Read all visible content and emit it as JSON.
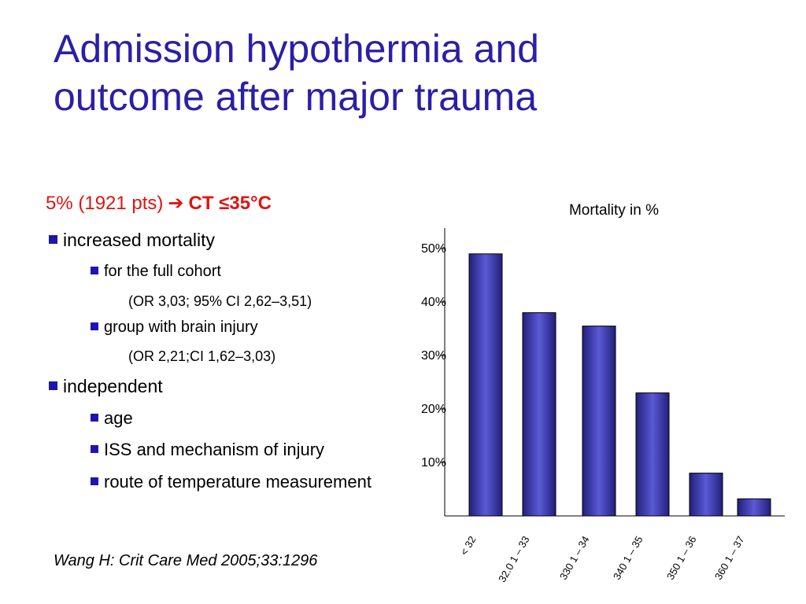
{
  "slide": {
    "title_lines": [
      "Admission hypothermia and",
      "outcome after major trauma"
    ],
    "lead": {
      "text": "5% (1921 pts)",
      "arrow": "➔",
      "highlight": "CT  ≤35°C"
    },
    "bullets": {
      "mortality": "increased mortality",
      "full_cohort": "for the full cohort",
      "full_cohort_detail": "(OR 3,03; 95% CI 2,62–3,51)",
      "brain_injury": "group with brain injury",
      "brain_injury_detail": "(OR 2,21;CI 1,62–3,03)",
      "independent": "independent",
      "age": "age",
      "iss": "ISS and mechanism of injury",
      "route": "route of temperature measurement"
    },
    "citation": "Wang H: Crit Care Med 2005;33:1296"
  },
  "colors": {
    "title": "#2b1ea8",
    "lead": "#e0140f",
    "bullet_square": "#1e14b0",
    "bar": "#22207a",
    "bar_highlight": "#5a5ad6"
  },
  "chart_data": {
    "type": "bar",
    "title": "Mortality in %",
    "categories": [
      "<  32",
      "32.0 1 – 33",
      "330 1 – 34",
      "340 1 – 35",
      "350 1 – 36",
      "360 1 – 37"
    ],
    "values": [
      49,
      38,
      35.5,
      23,
      8,
      3.2
    ],
    "yticks": [
      10,
      20,
      30,
      40,
      50
    ],
    "ytick_labels": [
      "10%",
      "20%",
      "30%",
      "40%",
      "50%"
    ],
    "ylim": [
      0,
      52
    ],
    "xlabel": "",
    "ylabel": "",
    "grid": false,
    "legend": "none"
  }
}
